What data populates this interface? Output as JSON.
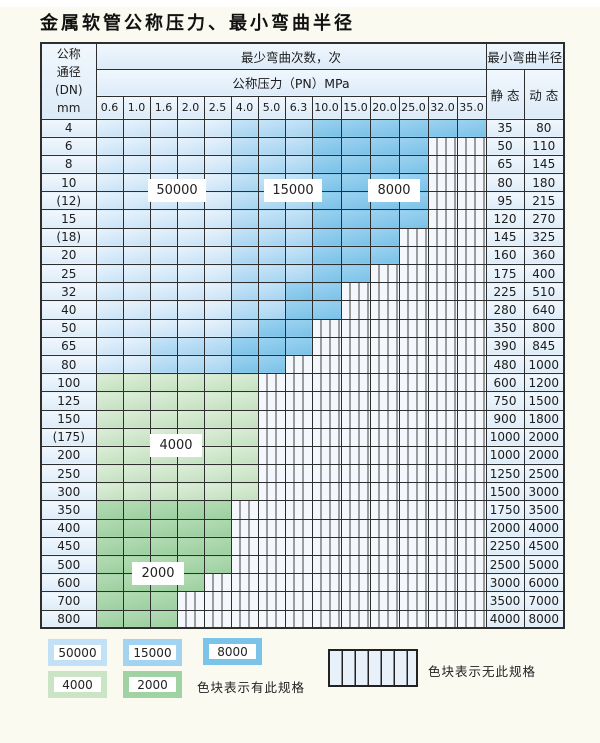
{
  "page_title": "金属软管公称压力、最小弯曲半径",
  "table": {
    "dn_header_lines": [
      "公称",
      "通径",
      "(DN)",
      "mm"
    ],
    "bend_times_header": "最少弯曲次数，次",
    "pressure_header": "公称压力（PN）MPa",
    "pressure_columns": [
      "0.6",
      "1.0",
      "1.6",
      "2.0",
      "2.5",
      "4.0",
      "5.0",
      "6.3",
      "10.0",
      "15.0",
      "20.0",
      "25.0",
      "32.0",
      "35.0"
    ],
    "radius_header": "最小弯曲半径",
    "static_header": "静 态",
    "dynamic_header": "动 态",
    "cell_legend": {
      "a": "50000",
      "b": "15000",
      "c": "8000",
      "d": "4000",
      "e": "2000",
      "x": "无此规格"
    },
    "rows": [
      {
        "dn": "4",
        "cells": "aaaaabbbcccccc",
        "static": "35",
        "dynamic": "80"
      },
      {
        "dn": "6",
        "cells": "aaaaabbbccccxx",
        "static": "50",
        "dynamic": "110"
      },
      {
        "dn": "8",
        "cells": "aaaaabbbccccxx",
        "static": "65",
        "dynamic": "145"
      },
      {
        "dn": "10",
        "cells": "aaaaabbbccccxx",
        "static": "80",
        "dynamic": "180"
      },
      {
        "dn": "(12)",
        "cells": "aaaaabbbccccxx",
        "static": "95",
        "dynamic": "215"
      },
      {
        "dn": "15",
        "cells": "aaaaabbbccccxx",
        "static": "120",
        "dynamic": "270"
      },
      {
        "dn": "(18)",
        "cells": "aaaaabbbcccxxx",
        "static": "145",
        "dynamic": "325"
      },
      {
        "dn": "20",
        "cells": "aaaaabbbcccxxx",
        "static": "160",
        "dynamic": "360"
      },
      {
        "dn": "25",
        "cells": "aaaaabbbccxxxx",
        "static": "175",
        "dynamic": "400"
      },
      {
        "dn": "32",
        "cells": "aaaaabbccxxxxx",
        "static": "225",
        "dynamic": "510"
      },
      {
        "dn": "40",
        "cells": "aaaaabbccxxxxx",
        "static": "280",
        "dynamic": "640"
      },
      {
        "dn": "50",
        "cells": "aaaaabccxxxxxx",
        "static": "350",
        "dynamic": "800"
      },
      {
        "dn": "65",
        "cells": "aabbbcccxxxxxx",
        "static": "390",
        "dynamic": "845"
      },
      {
        "dn": "80",
        "cells": "aabbbccxxxxxxx",
        "static": "480",
        "dynamic": "1000"
      },
      {
        "dn": "100",
        "cells": "ddddddxxxxxxxx",
        "static": "600",
        "dynamic": "1200"
      },
      {
        "dn": "125",
        "cells": "ddddddxxxxxxxx",
        "static": "750",
        "dynamic": "1500"
      },
      {
        "dn": "150",
        "cells": "ddddddxxxxxxxx",
        "static": "900",
        "dynamic": "1800"
      },
      {
        "dn": "(175)",
        "cells": "ddddddxxxxxxxx",
        "static": "1000",
        "dynamic": "2000"
      },
      {
        "dn": "200",
        "cells": "ddddddxxxxxxxx",
        "static": "1000",
        "dynamic": "2000"
      },
      {
        "dn": "250",
        "cells": "ddddddxxxxxxxx",
        "static": "1250",
        "dynamic": "2500"
      },
      {
        "dn": "300",
        "cells": "ddddddxxxxxxxx",
        "static": "1500",
        "dynamic": "3000"
      },
      {
        "dn": "350",
        "cells": "eeeeexxxxxxxxx",
        "static": "1750",
        "dynamic": "3500"
      },
      {
        "dn": "400",
        "cells": "eeeeexxxxxxxxx",
        "static": "2000",
        "dynamic": "4000"
      },
      {
        "dn": "450",
        "cells": "eeeeexxxxxxxxx",
        "static": "2250",
        "dynamic": "4500"
      },
      {
        "dn": "500",
        "cells": "eeeeexxxxxxxxx",
        "static": "2500",
        "dynamic": "5000"
      },
      {
        "dn": "600",
        "cells": "eeeexxxxxxxxxx",
        "static": "3000",
        "dynamic": "6000"
      },
      {
        "dn": "700",
        "cells": "eeexxxxxxxxxxx",
        "static": "3500",
        "dynamic": "7000"
      },
      {
        "dn": "800",
        "cells": "eeexxxxxxxxxxx",
        "static": "4000",
        "dynamic": "8000"
      }
    ]
  },
  "region_labels": [
    {
      "text": "50000"
    },
    {
      "text": "15000"
    },
    {
      "text": "8000"
    },
    {
      "text": "4000"
    },
    {
      "text": "2000"
    }
  ],
  "legend": {
    "chips": [
      {
        "label": "50000",
        "color": "#c3e1f6"
      },
      {
        "label": "15000",
        "color": "#a2d3f0"
      },
      {
        "label": "8000",
        "color": "#7cc3e9"
      },
      {
        "label": "4000",
        "color": "#cbe4c6"
      },
      {
        "label": "2000",
        "color": "#a0d2a3"
      }
    ],
    "has_spec_note": "色块表示有此规格",
    "no_spec_note": "色块表示无此规格"
  },
  "colors": {
    "band_50000": "#cde6f8",
    "band_15000": "#a9d6f2",
    "band_8000": "#84c7ec",
    "band_4000": "#d0e7cc",
    "band_2000": "#a5d5a8",
    "hatch_line": "#3f3f3f",
    "border": "#2e2e2e",
    "header_fill": "#e4eef8",
    "page_bg": "#fafaf0"
  }
}
